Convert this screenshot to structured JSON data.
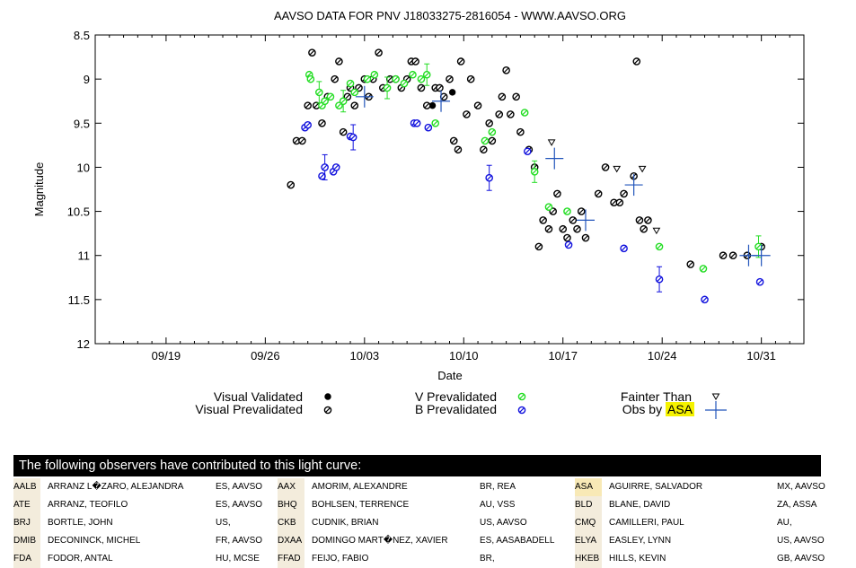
{
  "chart_data": {
    "type": "scatter",
    "title": "AAVSO DATA FOR PNV J18033275-2816054 - WWW.AAVSO.ORG",
    "xlabel": "Date",
    "ylabel": "Magnitude",
    "x_ticks": [
      "09/19",
      "09/26",
      "10/03",
      "10/10",
      "10/17",
      "10/24",
      "10/31"
    ],
    "y_ticks": [
      "8.5",
      "9",
      "9.5",
      "10",
      "10.5",
      "11",
      "11.5",
      "12"
    ],
    "x_range_days": [
      0,
      50
    ],
    "x_axis_start": "09/14",
    "ylim": [
      12,
      8.5
    ],
    "y_inverted": true,
    "grid": false,
    "legend_position": "bottom",
    "colors": {
      "visual_validated": "#000000",
      "visual_prevalidated": "#000000",
      "v_prevalidated": "#22dd22",
      "b_prevalidated": "#1111dd",
      "fainter_than": "#000000",
      "obs_by_asa": "#2255bb"
    },
    "series": [
      {
        "name": "Visual Validated",
        "points": [
          [
            23.8,
            9.3
          ],
          [
            25.2,
            9.15
          ]
        ]
      },
      {
        "name": "Visual Prevalidated",
        "points": [
          [
            13.8,
            10.2
          ],
          [
            14.2,
            9.7
          ],
          [
            14.6,
            9.7
          ],
          [
            15.0,
            9.3
          ],
          [
            15.3,
            8.7
          ],
          [
            15.6,
            9.3
          ],
          [
            16.0,
            9.5
          ],
          [
            16.4,
            9.2
          ],
          [
            16.9,
            9.0
          ],
          [
            17.2,
            8.8
          ],
          [
            17.5,
            9.6
          ],
          [
            17.8,
            9.2
          ],
          [
            18.0,
            9.1
          ],
          [
            18.3,
            9.3
          ],
          [
            18.6,
            9.1
          ],
          [
            19.0,
            9.0
          ],
          [
            19.3,
            9.2
          ],
          [
            19.6,
            9.0
          ],
          [
            20.0,
            8.7
          ],
          [
            20.3,
            9.1
          ],
          [
            20.8,
            9.0
          ],
          [
            21.2,
            9.0
          ],
          [
            21.6,
            9.1
          ],
          [
            22.0,
            9.0
          ],
          [
            22.3,
            8.8
          ],
          [
            22.6,
            8.8
          ],
          [
            23.0,
            9.1
          ],
          [
            23.4,
            9.3
          ],
          [
            24.0,
            9.1
          ],
          [
            24.3,
            9.1
          ],
          [
            24.6,
            9.2
          ],
          [
            25.0,
            9.0
          ],
          [
            25.3,
            9.7
          ],
          [
            25.6,
            9.8
          ],
          [
            25.8,
            8.8
          ],
          [
            26.2,
            9.4
          ],
          [
            26.5,
            9.0
          ],
          [
            27.0,
            9.3
          ],
          [
            27.4,
            9.8
          ],
          [
            27.8,
            9.5
          ],
          [
            28.0,
            9.7
          ],
          [
            28.5,
            9.4
          ],
          [
            28.7,
            9.2
          ],
          [
            29.0,
            8.9
          ],
          [
            29.3,
            9.4
          ],
          [
            29.7,
            9.2
          ],
          [
            30.0,
            9.6
          ],
          [
            30.6,
            9.8
          ],
          [
            31.0,
            10.0
          ],
          [
            31.3,
            10.9
          ],
          [
            31.6,
            10.6
          ],
          [
            32.0,
            10.7
          ],
          [
            32.3,
            10.5
          ],
          [
            32.6,
            10.3
          ],
          [
            33.0,
            10.7
          ],
          [
            33.3,
            10.8
          ],
          [
            33.7,
            10.6
          ],
          [
            34.0,
            10.7
          ],
          [
            34.3,
            10.5
          ],
          [
            34.6,
            10.8
          ],
          [
            35.5,
            10.3
          ],
          [
            36.0,
            10.0
          ],
          [
            36.6,
            10.4
          ],
          [
            37.0,
            10.4
          ],
          [
            37.3,
            10.3
          ],
          [
            38.0,
            10.1
          ],
          [
            38.2,
            8.8
          ],
          [
            38.4,
            10.6
          ],
          [
            38.7,
            10.7
          ],
          [
            39.0,
            10.6
          ],
          [
            42.0,
            11.1
          ],
          [
            44.3,
            11.0
          ],
          [
            45.0,
            11.0
          ],
          [
            46.0,
            11.0
          ],
          [
            47.0,
            10.9
          ]
        ]
      },
      {
        "name": "V Prevalidated",
        "points": [
          [
            15.1,
            8.95
          ],
          [
            15.2,
            9.0
          ],
          [
            15.8,
            9.15
          ],
          [
            16.0,
            9.3
          ],
          [
            16.2,
            9.25
          ],
          [
            16.6,
            9.2
          ],
          [
            17.2,
            9.3
          ],
          [
            17.5,
            9.25
          ],
          [
            18.0,
            9.05
          ],
          [
            18.3,
            9.15
          ],
          [
            19.2,
            9.0
          ],
          [
            19.7,
            8.95
          ],
          [
            20.6,
            9.1
          ],
          [
            21.2,
            9.0
          ],
          [
            21.8,
            9.05
          ],
          [
            22.4,
            8.95
          ],
          [
            23.0,
            9.0
          ],
          [
            23.4,
            8.95
          ],
          [
            24.0,
            9.5
          ],
          [
            27.5,
            9.7
          ],
          [
            28.0,
            9.6
          ],
          [
            30.3,
            9.38
          ],
          [
            31.0,
            10.05
          ],
          [
            32.0,
            10.45
          ],
          [
            33.3,
            10.5
          ],
          [
            39.8,
            10.9
          ],
          [
            42.9,
            11.15
          ],
          [
            46.8,
            10.9
          ]
        ]
      },
      {
        "name": "B Prevalidated",
        "points": [
          [
            14.8,
            9.55
          ],
          [
            15.0,
            9.52
          ],
          [
            16.0,
            10.1
          ],
          [
            16.2,
            10.0
          ],
          [
            16.8,
            10.05
          ],
          [
            17.0,
            10.0
          ],
          [
            18.0,
            9.65
          ],
          [
            18.2,
            9.66
          ],
          [
            22.5,
            9.5
          ],
          [
            22.7,
            9.5
          ],
          [
            23.5,
            9.55
          ],
          [
            27.8,
            10.12
          ],
          [
            30.5,
            9.82
          ],
          [
            33.4,
            10.88
          ],
          [
            37.3,
            10.92
          ],
          [
            39.8,
            11.27
          ],
          [
            43.0,
            11.5
          ],
          [
            46.9,
            11.3
          ]
        ]
      },
      {
        "name": "Fainter Than",
        "points": [
          [
            32.2,
            9.72
          ],
          [
            36.8,
            10.02
          ],
          [
            38.6,
            10.02
          ],
          [
            39.6,
            10.72
          ]
        ]
      },
      {
        "name": "Obs by ASA",
        "points": [
          [
            19.0,
            9.2
          ],
          [
            24.4,
            9.25
          ],
          [
            32.4,
            9.9
          ],
          [
            34.6,
            10.6
          ],
          [
            38.0,
            10.2
          ],
          [
            46.1,
            11.0
          ],
          [
            47.0,
            11.0
          ]
        ]
      }
    ]
  },
  "legend": {
    "visual_validated": "Visual Validated",
    "visual_prevalidated": "Visual Prevalidated",
    "v_prevalidated": "V Prevalidated",
    "b_prevalidated": "B Prevalidated",
    "fainter_than": "Fainter Than",
    "obs_by_prefix": "Obs by",
    "obs_by_code": "ASA"
  },
  "observers": {
    "header": "The following observers have contributed to this light curve:",
    "rows": [
      [
        {
          "code": "AALB",
          "name": "ARRANZ L�ZARO, ALEJANDRA",
          "loc": "ES, AAVSO"
        },
        {
          "code": "AAX",
          "name": "AMORIM, ALEXANDRE",
          "loc": "BR, REA"
        },
        {
          "code": "ASA",
          "name": "AGUIRRE, SALVADOR",
          "loc": "MX, AAVSO"
        }
      ],
      [
        {
          "code": "ATE",
          "name": "ARRANZ, TEOFILO",
          "loc": "ES, AAVSO"
        },
        {
          "code": "BHQ",
          "name": "BOHLSEN, TERRENCE",
          "loc": "AU, VSS"
        },
        {
          "code": "BLD",
          "name": "BLANE, DAVID",
          "loc": "ZA, ASSA"
        }
      ],
      [
        {
          "code": "BRJ",
          "name": "BORTLE, JOHN",
          "loc": "US,"
        },
        {
          "code": "CKB",
          "name": "CUDNIK, BRIAN",
          "loc": "US, AAVSO"
        },
        {
          "code": "CMQ",
          "name": "CAMILLERI, PAUL",
          "loc": "AU,"
        }
      ],
      [
        {
          "code": "DMIB",
          "name": "DECONINCK, MICHEL",
          "loc": "FR, AAVSO"
        },
        {
          "code": "DXAA",
          "name": "DOMINGO MART�NEZ, XAVIER",
          "loc": "ES, AASABADELL"
        },
        {
          "code": "ELYA",
          "name": "EASLEY, LYNN",
          "loc": "US, AAVSO"
        }
      ],
      [
        {
          "code": "FDA",
          "name": "FODOR, ANTAL",
          "loc": "HU, MCSE"
        },
        {
          "code": "FFAD",
          "name": "FEIJO, FABIO",
          "loc": "BR,"
        },
        {
          "code": "HKEB",
          "name": "HILLS, KEVIN",
          "loc": "GB, AAVSO"
        }
      ]
    ]
  }
}
